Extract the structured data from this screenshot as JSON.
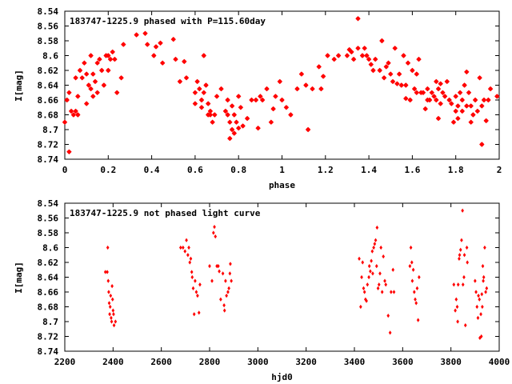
{
  "chart_data": [
    {
      "type": "scatter",
      "title": "183747-1225.9 phased with P=115.60day",
      "xlabel": "phase",
      "ylabel": "I[mag]",
      "xlim": [
        0,
        2
      ],
      "ylim": [
        8.74,
        8.54
      ],
      "y_inverted": true,
      "grid": false,
      "x_ticks": [
        0,
        0.2,
        0.4,
        0.6,
        0.8,
        1,
        1.2,
        1.4,
        1.6,
        1.8,
        2
      ],
      "x_tick_labels": [
        "0",
        "0.2",
        "0.4",
        "0.6",
        "0.8",
        "1",
        "1.2",
        "1.4",
        "1.6",
        "1.8",
        "2"
      ],
      "y_ticks": [
        8.54,
        8.56,
        8.58,
        8.6,
        8.62,
        8.64,
        8.66,
        8.68,
        8.7,
        8.72,
        8.74
      ],
      "y_tick_labels": [
        "8.54",
        "8.56",
        "8.58",
        "8.6",
        "8.62",
        "8.64",
        "8.66",
        "8.68",
        "8.7",
        "8.72",
        "8.74"
      ],
      "marker_color": "#ff0000",
      "marker": "star",
      "points": [
        [
          0.0,
          8.69
        ],
        [
          0.01,
          8.66
        ],
        [
          0.02,
          8.65
        ],
        [
          0.02,
          8.73
        ],
        [
          0.03,
          8.675
        ],
        [
          0.04,
          8.68
        ],
        [
          0.05,
          8.675
        ],
        [
          0.05,
          8.63
        ],
        [
          0.06,
          8.68
        ],
        [
          0.06,
          8.655
        ],
        [
          0.07,
          8.62
        ],
        [
          0.08,
          8.63
        ],
        [
          0.09,
          8.61
        ],
        [
          0.1,
          8.625
        ],
        [
          0.1,
          8.665
        ],
        [
          0.11,
          8.64
        ],
        [
          0.12,
          8.6
        ],
        [
          0.12,
          8.645
        ],
        [
          0.13,
          8.655
        ],
        [
          0.13,
          8.625
        ],
        [
          0.14,
          8.635
        ],
        [
          0.15,
          8.65
        ],
        [
          0.15,
          8.61
        ],
        [
          0.16,
          8.605
        ],
        [
          0.17,
          8.62
        ],
        [
          0.18,
          8.64
        ],
        [
          0.19,
          8.6
        ],
        [
          0.2,
          8.62
        ],
        [
          0.2,
          8.6
        ],
        [
          0.21,
          8.605
        ],
        [
          0.22,
          8.595
        ],
        [
          0.23,
          8.605
        ],
        [
          0.24,
          8.65
        ],
        [
          0.26,
          8.63
        ],
        [
          0.27,
          8.585
        ],
        [
          0.33,
          8.572
        ],
        [
          0.37,
          8.57
        ],
        [
          0.38,
          8.585
        ],
        [
          0.41,
          8.6
        ],
        [
          0.42,
          8.588
        ],
        [
          0.44,
          8.583
        ],
        [
          0.45,
          8.61
        ],
        [
          0.5,
          8.578
        ],
        [
          0.51,
          8.605
        ],
        [
          0.53,
          8.635
        ],
        [
          0.55,
          8.608
        ],
        [
          0.56,
          8.63
        ],
        [
          0.6,
          8.665
        ],
        [
          0.6,
          8.65
        ],
        [
          0.61,
          8.635
        ],
        [
          0.62,
          8.645
        ],
        [
          0.63,
          8.66
        ],
        [
          0.63,
          8.67
        ],
        [
          0.64,
          8.65
        ],
        [
          0.64,
          8.6
        ],
        [
          0.65,
          8.64
        ],
        [
          0.66,
          8.68
        ],
        [
          0.66,
          8.665
        ],
        [
          0.67,
          8.675
        ],
        [
          0.67,
          8.68
        ],
        [
          0.68,
          8.69
        ],
        [
          0.69,
          8.68
        ],
        [
          0.7,
          8.655
        ],
        [
          0.72,
          8.645
        ],
        [
          0.74,
          8.675
        ],
        [
          0.75,
          8.66
        ],
        [
          0.75,
          8.68
        ],
        [
          0.76,
          8.712
        ],
        [
          0.76,
          8.69
        ],
        [
          0.77,
          8.668
        ],
        [
          0.77,
          8.7
        ],
        [
          0.78,
          8.68
        ],
        [
          0.78,
          8.705
        ],
        [
          0.79,
          8.69
        ],
        [
          0.8,
          8.655
        ],
        [
          0.8,
          8.698
        ],
        [
          0.81,
          8.67
        ],
        [
          0.82,
          8.695
        ],
        [
          0.84,
          8.685
        ],
        [
          0.86,
          8.66
        ],
        [
          0.88,
          8.66
        ],
        [
          0.89,
          8.698
        ],
        [
          0.9,
          8.655
        ],
        [
          0.91,
          8.66
        ],
        [
          0.93,
          8.645
        ],
        [
          0.95,
          8.69
        ],
        [
          0.96,
          8.672
        ],
        [
          0.97,
          8.655
        ],
        [
          0.99,
          8.635
        ],
        [
          1.0,
          8.66
        ],
        [
          1.02,
          8.67
        ],
        [
          1.04,
          8.68
        ],
        [
          1.07,
          8.645
        ],
        [
          1.09,
          8.625
        ],
        [
          1.11,
          8.64
        ],
        [
          1.12,
          8.7
        ],
        [
          1.14,
          8.645
        ],
        [
          1.17,
          8.615
        ],
        [
          1.18,
          8.645
        ],
        [
          1.19,
          8.628
        ],
        [
          1.21,
          8.6
        ],
        [
          1.24,
          8.605
        ],
        [
          1.26,
          8.6
        ],
        [
          1.3,
          8.6
        ],
        [
          1.31,
          8.592
        ],
        [
          1.32,
          8.595
        ],
        [
          1.33,
          8.605
        ],
        [
          1.35,
          8.59
        ],
        [
          1.35,
          8.55
        ],
        [
          1.37,
          8.6
        ],
        [
          1.38,
          8.59
        ],
        [
          1.39,
          8.6
        ],
        [
          1.4,
          8.605
        ],
        [
          1.41,
          8.612
        ],
        [
          1.42,
          8.62
        ],
        [
          1.43,
          8.605
        ],
        [
          1.45,
          8.62
        ],
        [
          1.46,
          8.58
        ],
        [
          1.47,
          8.63
        ],
        [
          1.48,
          8.615
        ],
        [
          1.49,
          8.61
        ],
        [
          1.5,
          8.625
        ],
        [
          1.51,
          8.635
        ],
        [
          1.52,
          8.59
        ],
        [
          1.53,
          8.638
        ],
        [
          1.54,
          8.625
        ],
        [
          1.55,
          8.64
        ],
        [
          1.56,
          8.6
        ],
        [
          1.57,
          8.658
        ],
        [
          1.57,
          8.64
        ],
        [
          1.58,
          8.61
        ],
        [
          1.59,
          8.66
        ],
        [
          1.6,
          8.62
        ],
        [
          1.61,
          8.645
        ],
        [
          1.62,
          8.625
        ],
        [
          1.62,
          8.65
        ],
        [
          1.63,
          8.605
        ],
        [
          1.64,
          8.65
        ],
        [
          1.65,
          8.65
        ],
        [
          1.66,
          8.672
        ],
        [
          1.67,
          8.66
        ],
        [
          1.67,
          8.645
        ],
        [
          1.68,
          8.66
        ],
        [
          1.69,
          8.65
        ],
        [
          1.7,
          8.655
        ],
        [
          1.71,
          8.635
        ],
        [
          1.71,
          8.66
        ],
        [
          1.72,
          8.645
        ],
        [
          1.72,
          8.685
        ],
        [
          1.73,
          8.665
        ],
        [
          1.73,
          8.638
        ],
        [
          1.74,
          8.65
        ],
        [
          1.75,
          8.655
        ],
        [
          1.76,
          8.635
        ],
        [
          1.77,
          8.66
        ],
        [
          1.78,
          8.665
        ],
        [
          1.79,
          8.69
        ],
        [
          1.8,
          8.675
        ],
        [
          1.8,
          8.655
        ],
        [
          1.81,
          8.685
        ],
        [
          1.81,
          8.668
        ],
        [
          1.82,
          8.65
        ],
        [
          1.83,
          8.675
        ],
        [
          1.83,
          8.66
        ],
        [
          1.84,
          8.64
        ],
        [
          1.85,
          8.622
        ],
        [
          1.85,
          8.668
        ],
        [
          1.86,
          8.65
        ],
        [
          1.87,
          8.668
        ],
        [
          1.87,
          8.69
        ],
        [
          1.88,
          8.68
        ],
        [
          1.89,
          8.66
        ],
        [
          1.9,
          8.675
        ],
        [
          1.91,
          8.63
        ],
        [
          1.92,
          8.668
        ],
        [
          1.92,
          8.72
        ],
        [
          1.93,
          8.66
        ],
        [
          1.94,
          8.688
        ],
        [
          1.95,
          8.66
        ],
        [
          1.96,
          8.645
        ],
        [
          1.99,
          8.655
        ]
      ]
    },
    {
      "type": "scatter",
      "title": "183747-1225.9 not phased light curve",
      "xlabel": "hjd0",
      "ylabel": "I[mag]",
      "xlim": [
        2200,
        4000
      ],
      "ylim": [
        8.74,
        8.54
      ],
      "y_inverted": true,
      "grid": false,
      "x_ticks": [
        2200,
        2400,
        2600,
        2800,
        3000,
        3200,
        3400,
        3600,
        3800,
        4000
      ],
      "x_tick_labels": [
        "2200",
        "2400",
        "2600",
        "2800",
        "3000",
        "3200",
        "3400",
        "3600",
        "3800",
        "4000"
      ],
      "y_ticks": [
        8.54,
        8.56,
        8.58,
        8.6,
        8.62,
        8.64,
        8.66,
        8.68,
        8.7,
        8.72,
        8.74
      ],
      "y_tick_labels": [
        "8.54",
        "8.56",
        "8.58",
        "8.6",
        "8.62",
        "8.64",
        "8.66",
        "8.68",
        "8.7",
        "8.72",
        "8.74"
      ],
      "marker_color": "#ff0000",
      "marker": "diamond",
      "points": [
        [
          2368,
          8.633
        ],
        [
          2376,
          8.633
        ],
        [
          2378,
          8.6
        ],
        [
          2380,
          8.645
        ],
        [
          2382,
          8.66
        ],
        [
          2384,
          8.675
        ],
        [
          2386,
          8.69
        ],
        [
          2388,
          8.68
        ],
        [
          2390,
          8.665
        ],
        [
          2392,
          8.695
        ],
        [
          2394,
          8.7
        ],
        [
          2396,
          8.652
        ],
        [
          2398,
          8.67
        ],
        [
          2400,
          8.685
        ],
        [
          2402,
          8.69
        ],
        [
          2404,
          8.705
        ],
        [
          2410,
          8.7
        ],
        [
          2680,
          8.6
        ],
        [
          2690,
          8.6
        ],
        [
          2698,
          8.605
        ],
        [
          2704,
          8.59
        ],
        [
          2710,
          8.61
        ],
        [
          2714,
          8.6
        ],
        [
          2718,
          8.62
        ],
        [
          2722,
          8.615
        ],
        [
          2726,
          8.633
        ],
        [
          2728,
          8.64
        ],
        [
          2732,
          8.655
        ],
        [
          2736,
          8.69
        ],
        [
          2740,
          8.645
        ],
        [
          2745,
          8.66
        ],
        [
          2750,
          8.665
        ],
        [
          2756,
          8.688
        ],
        [
          2760,
          8.65
        ],
        [
          2800,
          8.625
        ],
        [
          2810,
          8.645
        ],
        [
          2816,
          8.58
        ],
        [
          2820,
          8.572
        ],
        [
          2824,
          8.585
        ],
        [
          2830,
          8.625
        ],
        [
          2836,
          8.625
        ],
        [
          2840,
          8.632
        ],
        [
          2846,
          8.67
        ],
        [
          2855,
          8.635
        ],
        [
          2860,
          8.678
        ],
        [
          2862,
          8.685
        ],
        [
          2866,
          8.645
        ],
        [
          2870,
          8.665
        ],
        [
          2876,
          8.66
        ],
        [
          2880,
          8.655
        ],
        [
          2884,
          8.635
        ],
        [
          2886,
          8.622
        ],
        [
          2890,
          8.645
        ],
        [
          3420,
          8.615
        ],
        [
          3426,
          8.68
        ],
        [
          3430,
          8.64
        ],
        [
          3434,
          8.62
        ],
        [
          3438,
          8.655
        ],
        [
          3442,
          8.66
        ],
        [
          3446,
          8.67
        ],
        [
          3450,
          8.672
        ],
        [
          3454,
          8.65
        ],
        [
          3460,
          8.64
        ],
        [
          3462,
          8.625
        ],
        [
          3466,
          8.632
        ],
        [
          3470,
          8.618
        ],
        [
          3474,
          8.605
        ],
        [
          3476,
          8.635
        ],
        [
          3480,
          8.6
        ],
        [
          3484,
          8.595
        ],
        [
          3488,
          8.59
        ],
        [
          3492,
          8.625
        ],
        [
          3494,
          8.573
        ],
        [
          3498,
          8.655
        ],
        [
          3502,
          8.65
        ],
        [
          3506,
          8.635
        ],
        [
          3510,
          8.6
        ],
        [
          3515,
          8.66
        ],
        [
          3520,
          8.612
        ],
        [
          3526,
          8.645
        ],
        [
          3530,
          8.65
        ],
        [
          3540,
          8.692
        ],
        [
          3548,
          8.715
        ],
        [
          3552,
          8.66
        ],
        [
          3560,
          8.63
        ],
        [
          3564,
          8.66
        ],
        [
          3630,
          8.625
        ],
        [
          3634,
          8.6
        ],
        [
          3638,
          8.62
        ],
        [
          3640,
          8.645
        ],
        [
          3644,
          8.63
        ],
        [
          3648,
          8.66
        ],
        [
          3652,
          8.67
        ],
        [
          3656,
          8.675
        ],
        [
          3660,
          8.655
        ],
        [
          3664,
          8.698
        ],
        [
          3668,
          8.64
        ],
        [
          3812,
          8.65
        ],
        [
          3818,
          8.685
        ],
        [
          3822,
          8.67
        ],
        [
          3826,
          8.68
        ],
        [
          3828,
          8.7
        ],
        [
          3830,
          8.65
        ],
        [
          3834,
          8.615
        ],
        [
          3836,
          8.61
        ],
        [
          3840,
          8.603
        ],
        [
          3844,
          8.59
        ],
        [
          3848,
          8.55
        ],
        [
          3850,
          8.65
        ],
        [
          3854,
          8.64
        ],
        [
          3856,
          8.61
        ],
        [
          3860,
          8.705
        ],
        [
          3866,
          8.6
        ],
        [
          3868,
          8.62
        ],
        [
          3900,
          8.645
        ],
        [
          3904,
          8.66
        ],
        [
          3908,
          8.68
        ],
        [
          3912,
          8.695
        ],
        [
          3914,
          8.665
        ],
        [
          3918,
          8.67
        ],
        [
          3920,
          8.722
        ],
        [
          3924,
          8.69
        ],
        [
          3926,
          8.72
        ],
        [
          3928,
          8.663
        ],
        [
          3930,
          8.68
        ],
        [
          3932,
          8.625
        ],
        [
          3934,
          8.645
        ],
        [
          3936,
          8.64
        ],
        [
          3940,
          8.6
        ],
        [
          3944,
          8.66
        ],
        [
          3948,
          8.655
        ]
      ]
    }
  ]
}
